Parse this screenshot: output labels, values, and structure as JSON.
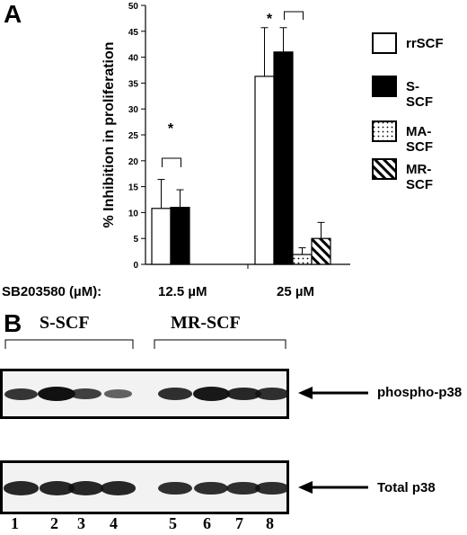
{
  "panel_a": {
    "letter": "A",
    "condition_label": "SB203580 (µM):",
    "dose_labels": [
      "12.5 µM",
      "25 µM"
    ],
    "significance_marker": "*",
    "legend": [
      {
        "label": "rrSCF",
        "fill": "#ffffff",
        "pattern": "none"
      },
      {
        "label": "S-SCF",
        "fill": "#000000",
        "pattern": "none"
      },
      {
        "label": "MA-SCF",
        "fill": "#ffffff",
        "pattern": "dots"
      },
      {
        "label": "MR-SCF",
        "fill": "#ffffff",
        "pattern": "stripes"
      }
    ]
  },
  "chart_data": {
    "type": "bar",
    "ylabel": "% Inhibition in proliferation",
    "ylim": [
      0,
      50
    ],
    "yticks": [
      0,
      5,
      10,
      15,
      20,
      25,
      30,
      35,
      40,
      45,
      50
    ],
    "categories": [
      "12.5 µM",
      "25 µM"
    ],
    "grid": false,
    "series": [
      {
        "name": "rrSCF",
        "values": [
          10.8,
          36.3
        ],
        "errors": [
          5.6,
          9.4
        ]
      },
      {
        "name": "S-SCF",
        "values": [
          11.0,
          41.0
        ],
        "errors": [
          3.4,
          4.7
        ]
      },
      {
        "name": "MA-SCF",
        "values": [
          null,
          1.9
        ],
        "errors": [
          null,
          1.3
        ]
      },
      {
        "name": "MR-SCF",
        "values": [
          null,
          5.0
        ],
        "errors": [
          null,
          3.1
        ]
      }
    ]
  },
  "panel_b": {
    "letter": "B",
    "groups": [
      "S-SCF",
      "MR-SCF"
    ],
    "blots": [
      {
        "label": "phospho-p38",
        "intensity": [
          0.75,
          1.0,
          0.7,
          0.45,
          0.8,
          0.95,
          0.85,
          0.8
        ]
      },
      {
        "label": "Total p38",
        "intensity": [
          0.85,
          0.85,
          0.85,
          0.85,
          0.8,
          0.8,
          0.8,
          0.8
        ]
      }
    ],
    "lanes": [
      "1",
      "2",
      "3",
      "4",
      "5",
      "6",
      "7",
      "8"
    ]
  }
}
